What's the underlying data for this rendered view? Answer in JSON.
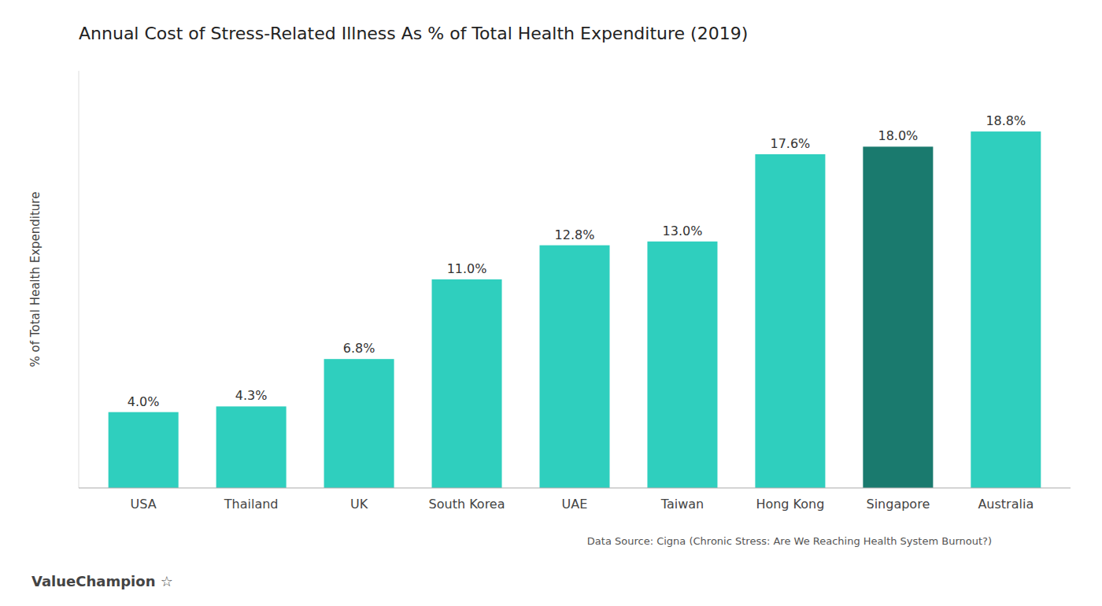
{
  "chart_data": {
    "type": "bar",
    "title": "Annual Cost of Stress-Related Illness As % of Total Health Expenditure (2019)",
    "y_label": "% of Total Health Expenditure",
    "categories": [
      "USA",
      "Thailand",
      "UK",
      "South Korea",
      "UAE",
      "Taiwan",
      "Hong Kong",
      "Singapore",
      "Australia"
    ],
    "values": [
      4.0,
      4.3,
      6.8,
      11.0,
      12.8,
      13.0,
      17.6,
      18.0,
      18.8
    ],
    "value_labels": [
      "4.0%",
      "4.3%",
      "6.8%",
      "11.0%",
      "12.8%",
      "13.0%",
      "17.6%",
      "18.0%",
      "18.8%"
    ],
    "colors": [
      "#2fcfbe",
      "#2fcfbe",
      "#2fcfbe",
      "#2fcfbe",
      "#2fcfbe",
      "#2fcfbe",
      "#2fcfbe",
      "#1a7a6e",
      "#2fcfbe"
    ],
    "ylim": [
      0,
      22
    ],
    "grid": false,
    "data_labels": true,
    "tick_labels": "x",
    "annotations": [
      "Data Source: Cigna (Chronic Stress: Are We Reaching Health System Burnout?)",
      "ValueChampion  ☆"
    ]
  }
}
